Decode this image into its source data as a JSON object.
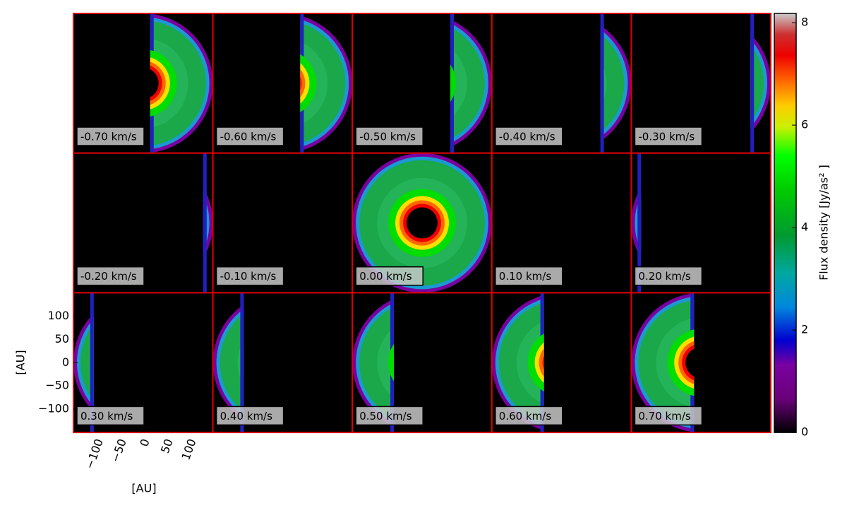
{
  "chart_data": {
    "type": "heatmap",
    "values": [
      -0.7,
      -0.6,
      -0.5,
      -0.4,
      -0.3,
      -0.2,
      -0.1,
      0.0,
      0.1,
      0.2,
      0.3,
      0.4,
      0.5,
      0.6,
      0.7
    ],
    "value_labels": [
      "-0.70 km/s",
      "-0.60 km/s",
      "-0.50 km/s",
      "-0.40 km/s",
      "-0.30 km/s",
      "-0.20 km/s",
      "-0.10 km/s",
      "0.00 km/s",
      "0.10 km/s",
      "0.20 km/s",
      "0.30 km/s",
      "0.40 km/s",
      "0.50 km/s",
      "0.60 km/s",
      "0.70 km/s"
    ],
    "xlabel": "[AU]",
    "ylabel": "[AU]",
    "xlim": [
      -150,
      150
    ],
    "ylim": [
      -150,
      150
    ],
    "xticks": [
      {
        "value": -100,
        "label": "−100"
      },
      {
        "value": -50,
        "label": "−50"
      },
      0,
      50,
      100
    ],
    "yticks": [
      100,
      50,
      0,
      {
        "value": -50,
        "label": "−50"
      },
      {
        "value": -100,
        "label": "−100"
      }
    ],
    "colorbar": {
      "label": "Flux density [Jy/as² ]",
      "clim": [
        0,
        8.18
      ],
      "ticks": [
        0,
        2,
        4,
        6,
        8
      ]
    },
    "frame_color": "#dd0000"
  }
}
